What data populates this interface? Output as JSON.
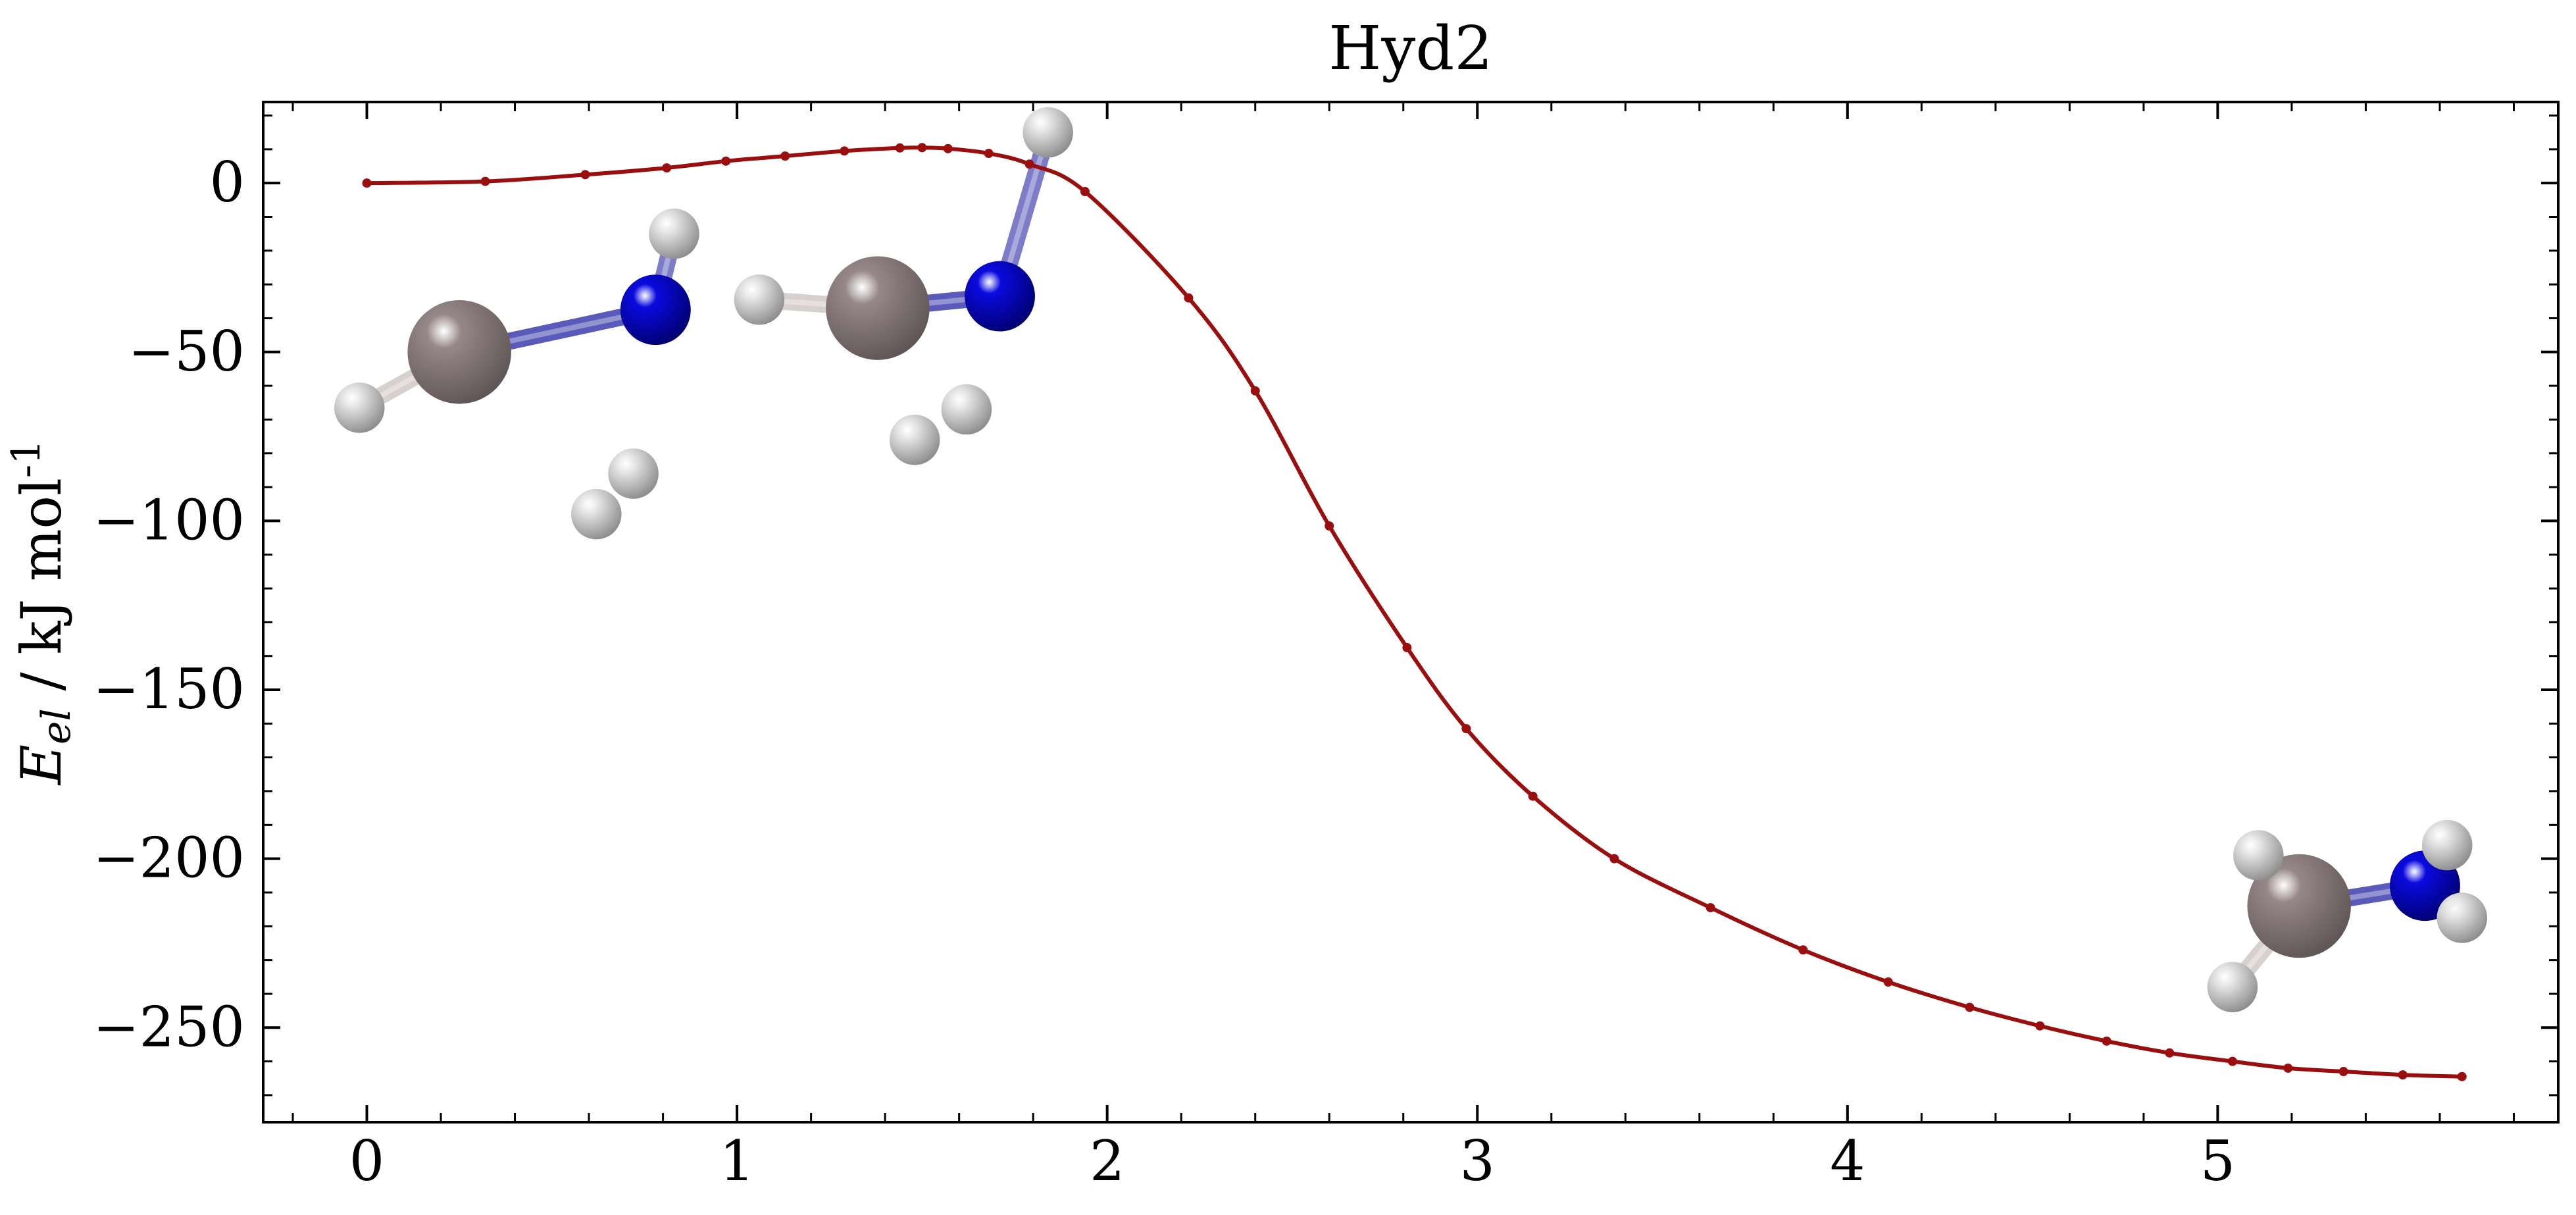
{
  "chart_data": {
    "type": "line",
    "title": "Hyd2",
    "xlabel": "",
    "ylabel": {
      "symbol": "E",
      "subscript": "el",
      "rest": " / kJ mol",
      "superscript": "-1"
    },
    "xlim": [
      -0.28,
      5.92
    ],
    "ylim": [
      -278,
      24
    ],
    "xticks": [
      0,
      1,
      2,
      3,
      4,
      5
    ],
    "xtick_labels": [
      "0",
      "1",
      "2",
      "3",
      "4",
      "5"
    ],
    "yticks": [
      0,
      -50,
      -100,
      -150,
      -200,
      -250
    ],
    "ytick_labels": [
      "0",
      "−50",
      "−100",
      "−150",
      "−200",
      "−250"
    ],
    "grid": false,
    "legend": "none",
    "series": [
      {
        "color": "#9b0e0e",
        "x": [
          0.0,
          0.32,
          0.59,
          0.81,
          0.97,
          1.13,
          1.29,
          1.44,
          1.5,
          1.57,
          1.68,
          1.79,
          1.94,
          2.22,
          2.4,
          2.6,
          2.81,
          2.97,
          3.15,
          3.37,
          3.63,
          3.88,
          4.11,
          4.33,
          4.52,
          4.7,
          4.87,
          5.04,
          5.19,
          5.34,
          5.5,
          5.66
        ],
        "y": [
          0.0,
          0.5,
          2.5,
          4.5,
          6.5,
          8.0,
          9.5,
          10.4,
          10.5,
          10.2,
          8.8,
          5.6,
          -2.5,
          -34.0,
          -61.5,
          -101.5,
          -137.5,
          -161.5,
          -181.5,
          -200.0,
          -214.5,
          -227.0,
          -236.5,
          -244.0,
          -249.5,
          -254.0,
          -257.5,
          -260.0,
          -262.0,
          -263.0,
          -264.0,
          -264.5
        ]
      }
    ],
    "molecules": [
      {
        "x": 0.25,
        "y": -50,
        "atoms": [
          {
            "dx": 0.0,
            "dy": 0,
            "r": 0.14,
            "color": "#968788"
          },
          {
            "dx": 0.53,
            "dy": 12.5,
            "r": 0.095,
            "color": "#0a0adf"
          },
          {
            "dx": 0.58,
            "dy": 35,
            "r": 0.068,
            "color": "#e8e8e8"
          },
          {
            "dx": -0.27,
            "dy": -16.5,
            "r": 0.068,
            "color": "#e8e8e8"
          },
          {
            "dx": 0.47,
            "dy": -36,
            "r": 0.068,
            "color": "#e8e8e8"
          },
          {
            "dx": 0.37,
            "dy": -48,
            "r": 0.068,
            "color": "#e8e8e8"
          }
        ],
        "bonds": [
          [
            0,
            1,
            "#5a5aba"
          ],
          [
            1,
            2,
            "#7c7cc8"
          ],
          [
            0,
            3,
            "#d8cfcf"
          ]
        ]
      },
      {
        "x": 1.38,
        "y": -37,
        "atoms": [
          {
            "dx": 0.0,
            "dy": 0,
            "r": 0.14,
            "color": "#968788"
          },
          {
            "dx": 0.33,
            "dy": 3.5,
            "r": 0.095,
            "color": "#0a0adf"
          },
          {
            "dx": 0.46,
            "dy": 52,
            "r": 0.068,
            "color": "#e8e8e8"
          },
          {
            "dx": -0.32,
            "dy": 2.5,
            "r": 0.068,
            "color": "#e8e8e8"
          },
          {
            "dx": 0.24,
            "dy": -30,
            "r": 0.068,
            "color": "#e8e8e8"
          },
          {
            "dx": 0.1,
            "dy": -39,
            "r": 0.068,
            "color": "#e8e8e8"
          }
        ],
        "bonds": [
          [
            0,
            1,
            "#5a5aba"
          ],
          [
            1,
            2,
            "#7c7cc8"
          ],
          [
            0,
            3,
            "#d8cfcf"
          ]
        ]
      },
      {
        "x": 5.22,
        "y": -214,
        "atoms": [
          {
            "dx": 0.0,
            "dy": 0,
            "r": 0.14,
            "color": "#968788"
          },
          {
            "dx": 0.34,
            "dy": 6,
            "r": 0.095,
            "color": "#0a0adf"
          },
          {
            "dx": 0.4,
            "dy": 18,
            "r": 0.068,
            "color": "#e8e8e8"
          },
          {
            "dx": 0.44,
            "dy": -3.5,
            "r": 0.068,
            "color": "#e8e8e8"
          },
          {
            "dx": -0.11,
            "dy": 15,
            "r": 0.068,
            "color": "#e8e8e8"
          },
          {
            "dx": -0.18,
            "dy": -24,
            "r": 0.068,
            "color": "#e8e8e8"
          }
        ],
        "bonds": [
          [
            0,
            1,
            "#5a5aba"
          ],
          [
            1,
            2,
            "#7c7cc8"
          ],
          [
            1,
            3,
            "#7c7cc8"
          ],
          [
            0,
            4,
            "#d8cfcf"
          ],
          [
            0,
            5,
            "#d8cfcf"
          ]
        ]
      }
    ]
  }
}
